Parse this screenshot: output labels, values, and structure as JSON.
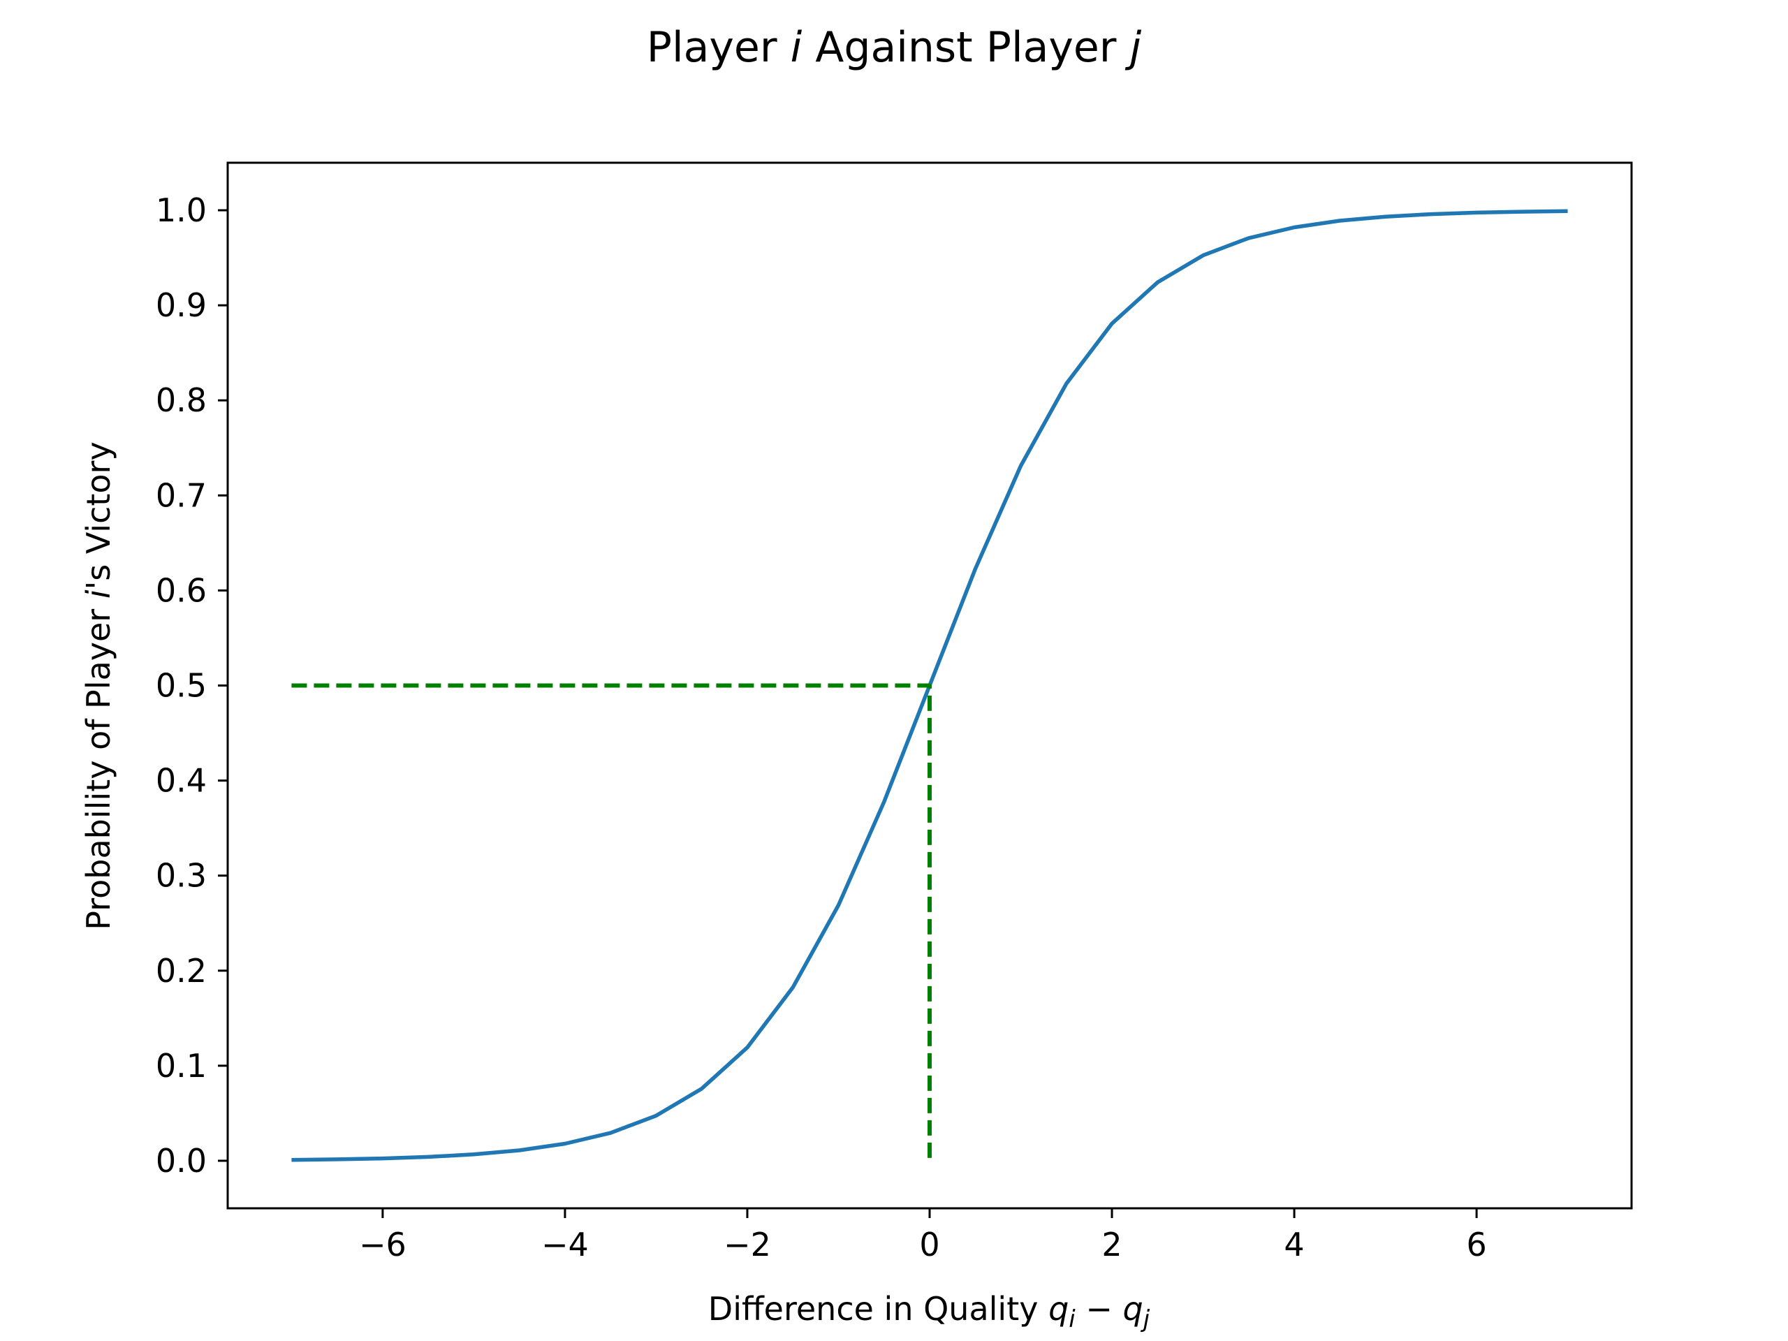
{
  "chart_data": {
    "type": "line",
    "title": {
      "parts": [
        {
          "text": "Player ",
          "italic": false
        },
        {
          "text": "i",
          "italic": true
        },
        {
          "text": " Against Player ",
          "italic": false
        },
        {
          "text": "j",
          "italic": true
        }
      ]
    },
    "xlabel": {
      "parts": [
        {
          "text": "Difference in Quality ",
          "italic": false
        },
        {
          "text": "q",
          "italic": true
        },
        {
          "text": "i",
          "italic": true,
          "sub": true
        },
        {
          "text": " − ",
          "italic": false
        },
        {
          "text": "q",
          "italic": true
        },
        {
          "text": "j",
          "italic": true,
          "sub": true
        }
      ]
    },
    "ylabel": {
      "parts": [
        {
          "text": "Probability of Player ",
          "italic": false
        },
        {
          "text": "i",
          "italic": true
        },
        {
          "text": "'s Victory",
          "italic": false
        }
      ]
    },
    "xlim": [
      -7.7,
      7.7
    ],
    "ylim": [
      -0.05,
      1.05
    ],
    "xticks": [
      -6,
      -4,
      -2,
      0,
      2,
      4,
      6
    ],
    "xtick_labels": [
      "−6",
      "−4",
      "−2",
      "0",
      "2",
      "4",
      "6"
    ],
    "yticks": [
      0.0,
      0.1,
      0.2,
      0.3,
      0.4,
      0.5,
      0.6,
      0.7,
      0.8,
      0.9,
      1.0
    ],
    "ytick_labels": [
      "0.0",
      "0.1",
      "0.2",
      "0.3",
      "0.4",
      "0.5",
      "0.6",
      "0.7",
      "0.8",
      "0.9",
      "1.0"
    ],
    "grid": false,
    "series": [
      {
        "color": "#1f77b4",
        "style": "solid",
        "x": [
          -7,
          -6.5,
          -6,
          -5.5,
          -5,
          -4.5,
          -4,
          -3.5,
          -3,
          -2.5,
          -2,
          -1.5,
          -1,
          -0.5,
          0,
          0.5,
          1,
          1.5,
          2,
          2.5,
          3,
          3.5,
          4,
          4.5,
          5,
          5.5,
          6,
          6.5,
          7
        ],
        "y": [
          0.0009,
          0.0015,
          0.0025,
          0.0041,
          0.0067,
          0.011,
          0.018,
          0.0293,
          0.0474,
          0.0759,
          0.1192,
          0.1824,
          0.2689,
          0.3775,
          0.5,
          0.6225,
          0.7311,
          0.8176,
          0.8808,
          0.9241,
          0.9526,
          0.9707,
          0.982,
          0.989,
          0.9933,
          0.9959,
          0.9975,
          0.9985,
          0.9991
        ]
      },
      {
        "color": "#008000",
        "style": "dashed",
        "x": [
          -7,
          0,
          0
        ],
        "y": [
          0.5,
          0.5,
          0.0
        ]
      }
    ]
  }
}
